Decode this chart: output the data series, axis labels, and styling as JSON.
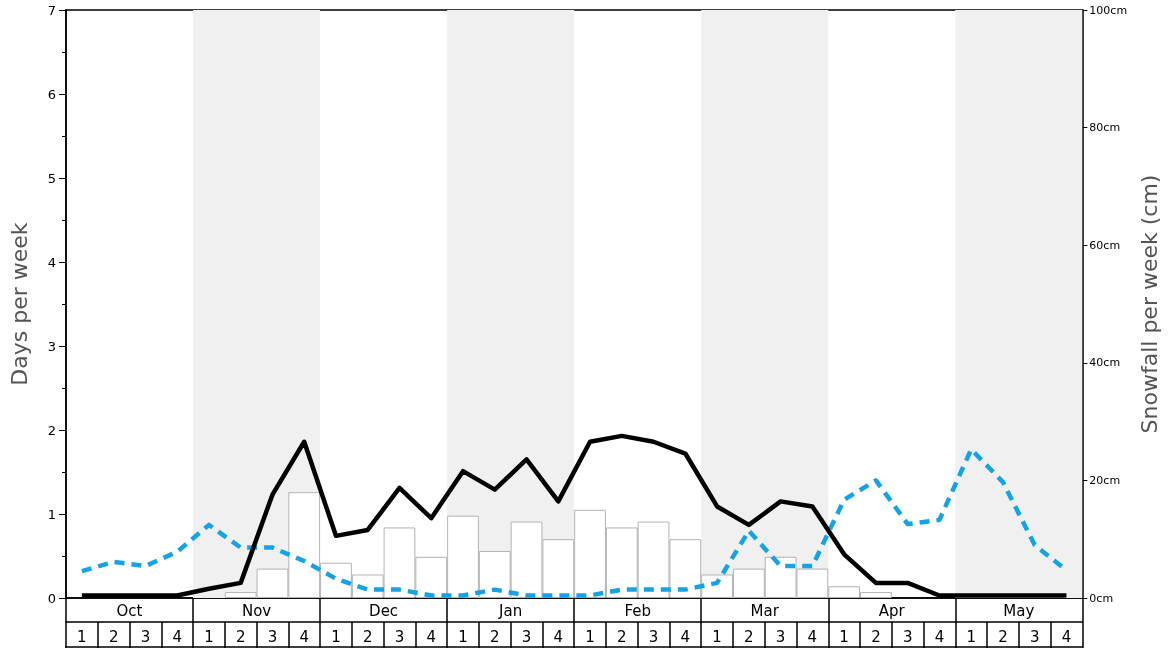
{
  "chart_data": {
    "type": "line",
    "ylabel": "Days per week",
    "y2label": "Snowfall per week (cm)",
    "categories": [
      "1",
      "2",
      "3",
      "4",
      "1",
      "2",
      "3",
      "4",
      "1",
      "2",
      "3",
      "4",
      "1",
      "2",
      "3",
      "4",
      "1",
      "2",
      "3",
      "4",
      "1",
      "2",
      "3",
      "4",
      "1",
      "2",
      "3",
      "4",
      "1",
      "2",
      "3",
      "4"
    ],
    "annotations": [
      "Oct",
      "Nov",
      "Dec",
      "Jan",
      "Feb",
      "Mar",
      "Apr",
      "May"
    ],
    "ylim": [
      0,
      7
    ],
    "yticks": [
      0,
      {
        "value": 0.5,
        "label": null
      },
      1,
      {
        "value": 1.5,
        "label": null
      },
      2,
      {
        "value": 2.5,
        "label": null
      },
      3,
      {
        "value": 3.5,
        "label": null
      },
      4,
      {
        "value": 4.5,
        "label": null
      },
      5,
      {
        "value": 5.5,
        "label": null
      },
      6,
      {
        "value": 6.5,
        "label": null
      },
      7
    ],
    "y2lim": [
      0,
      100
    ],
    "y2ticks": [
      {
        "value": 0,
        "label": "0cm"
      },
      {
        "value": 20,
        "label": "20cm"
      },
      {
        "value": 40,
        "label": "40cm"
      },
      {
        "value": 60,
        "label": "60cm"
      },
      {
        "value": 80,
        "label": "80cm"
      },
      {
        "value": 100,
        "label": "100cm"
      }
    ],
    "grid": false,
    "marker": "none",
    "series": [
      {
        "type": "bar",
        "axis": "y2",
        "color": "#ffffff",
        "values": [
          0,
          0,
          0,
          0,
          0,
          1,
          5,
          18,
          6,
          4,
          12,
          7,
          14,
          8,
          13,
          10,
          15,
          12,
          13,
          10,
          4,
          5,
          7,
          5,
          2,
          1,
          0,
          0,
          0,
          0,
          0,
          0
        ]
      },
      {
        "color": "#14a3e6",
        "line_style": "dashed",
        "values": [
          0.32,
          0.43,
          0.38,
          0.55,
          0.87,
          0.6,
          0.6,
          0.44,
          0.23,
          0.1,
          0.1,
          0.03,
          0.03,
          0.1,
          0.03,
          0.03,
          0.03,
          0.1,
          0.1,
          0.1,
          0.18,
          0.8,
          0.38,
          0.38,
          1.17,
          1.4,
          0.88,
          0.93,
          1.77,
          1.38,
          0.63,
          0.33
        ]
      },
      {
        "color": "#000000",
        "line_style": "solid",
        "values": [
          0.03,
          0.03,
          0.03,
          0.03,
          0.11,
          0.18,
          1.23,
          1.86,
          0.74,
          0.81,
          1.31,
          0.95,
          1.51,
          1.29,
          1.65,
          1.15,
          1.86,
          1.93,
          1.86,
          1.72,
          1.09,
          0.87,
          1.15,
          1.09,
          0.52,
          0.18,
          0.18,
          0.03,
          0.03,
          0.03,
          0.03,
          0.03
        ]
      }
    ]
  }
}
